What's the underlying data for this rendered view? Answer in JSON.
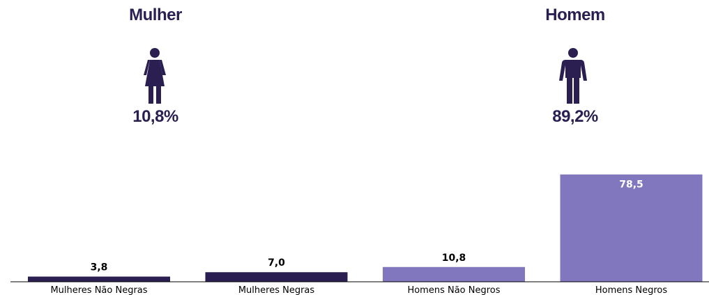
{
  "header": {
    "female": {
      "title": "Mulher",
      "percent": "10,8%",
      "icon": "female-person-icon"
    },
    "male": {
      "title": "Homem",
      "percent": "89,2%",
      "icon": "male-person-icon"
    },
    "text_color": "#2b1f52"
  },
  "chart_data": {
    "type": "bar",
    "categories": [
      "Mulheres Não Negras",
      "Mulheres Negras",
      "Homens Não Negros",
      "Homens Negros"
    ],
    "values": [
      3.8,
      7.0,
      10.8,
      78.5
    ],
    "value_labels": [
      "3,8",
      "7,0",
      "10,8",
      "78,5"
    ],
    "colors": [
      "#2b1f52",
      "#2b1f52",
      "#8177bf",
      "#8177bf"
    ],
    "ylim": [
      0,
      100
    ],
    "title": "",
    "xlabel": "",
    "ylabel": "",
    "grid": false,
    "y_axis_visible": false
  }
}
